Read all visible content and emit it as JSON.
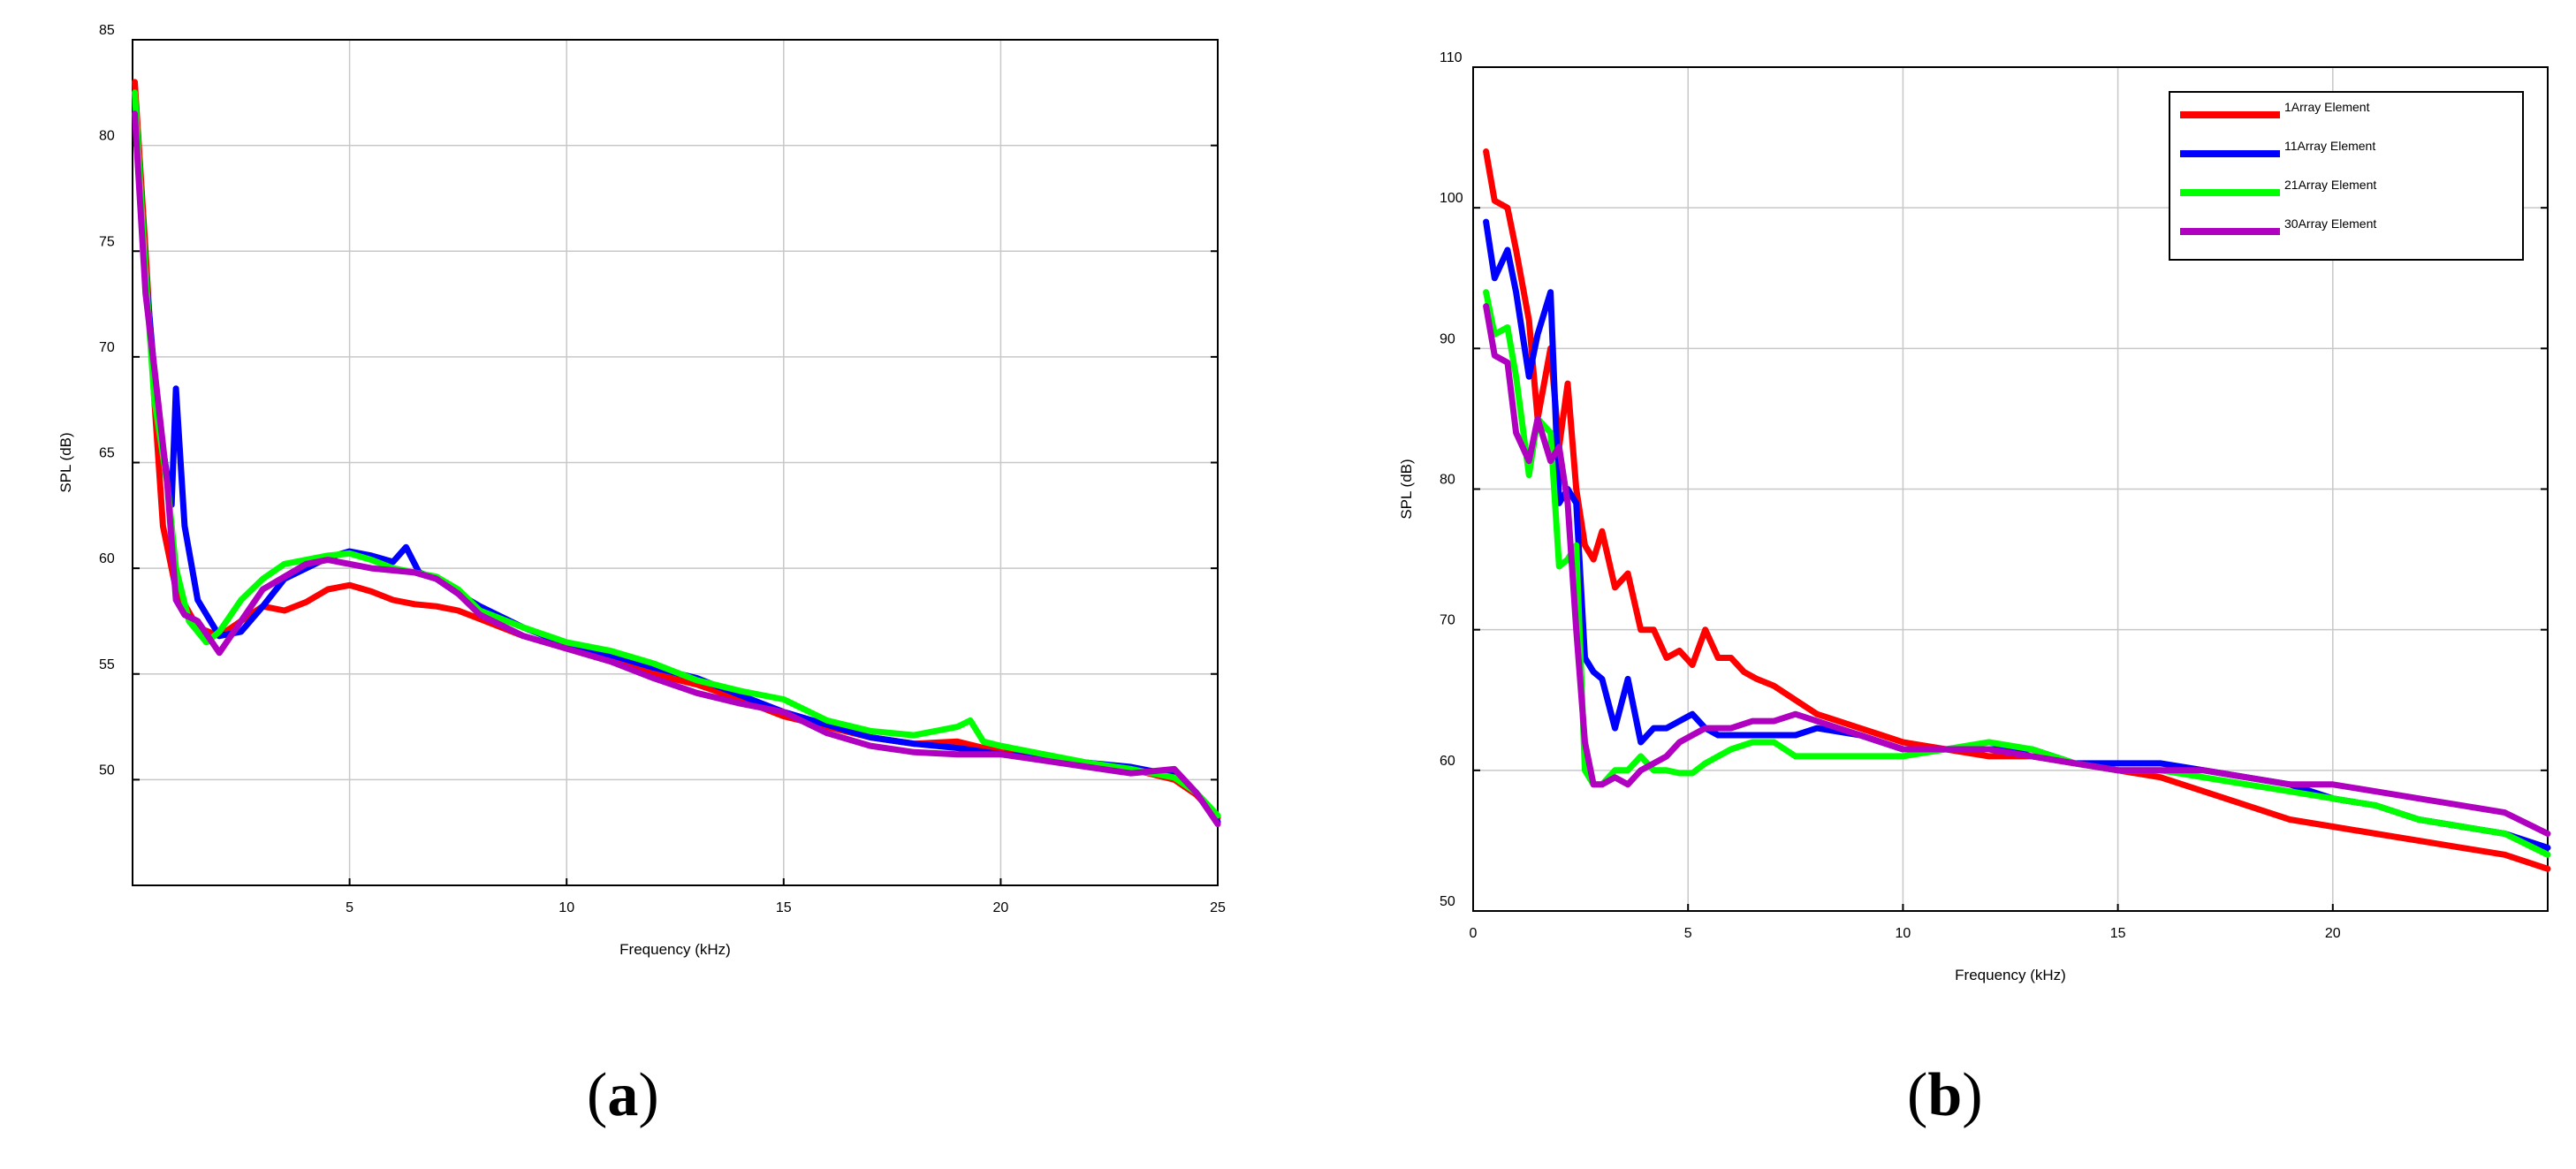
{
  "colors": {
    "red": "#ff0000",
    "blue": "#0000ff",
    "green": "#00ff00",
    "purple": "#b000c0",
    "grid": "#c8c8c8",
    "axis": "#000000"
  },
  "captions": {
    "a_open": "(",
    "a_letter": "a",
    "a_close": ")",
    "b_open": "(",
    "b_letter": "b",
    "b_close": ")"
  },
  "chart_data": [
    {
      "type": "line",
      "xlabel": "Frequency (kHz)",
      "ylabel": "SPL (dB)",
      "xlim": [
        0,
        25
      ],
      "ylim": [
        45,
        85
      ],
      "xticks": [
        5,
        10,
        15,
        20,
        25
      ],
      "yticks": [
        50,
        55,
        60,
        65,
        70,
        75,
        80,
        85
      ],
      "grid": true,
      "legend": null,
      "series": [
        {
          "color": "red",
          "x": [
            0.05,
            0.3,
            0.5,
            0.7,
            1.0,
            1.5,
            2.0,
            2.5,
            3.0,
            3.5,
            4.0,
            4.5,
            5.0,
            5.5,
            6.0,
            6.5,
            7.0,
            7.5,
            8.0,
            9.0,
            10.0,
            11.0,
            12.0,
            13.0,
            14.0,
            15.0,
            16.0,
            17.0,
            18.0,
            19.0,
            20.0,
            21.0,
            22.0,
            23.0,
            24.0,
            24.5,
            25.0
          ],
          "y": [
            83,
            75,
            68,
            62,
            59,
            57.2,
            56.8,
            57.5,
            58.2,
            58,
            58.4,
            59,
            59.2,
            58.9,
            58.5,
            58.3,
            58.2,
            58,
            57.6,
            56.8,
            56.2,
            55.6,
            55,
            54.5,
            53.8,
            53,
            52.5,
            52,
            51.7,
            51.8,
            51.3,
            51,
            50.8,
            50.5,
            50,
            49.3,
            48.2
          ]
        },
        {
          "color": "blue",
          "x": [
            0.05,
            0.3,
            0.6,
            0.9,
            1.0,
            1.2,
            1.5,
            2.0,
            2.5,
            3.0,
            3.5,
            4.0,
            4.5,
            5.0,
            5.5,
            6.0,
            6.3,
            6.6,
            7.0,
            7.5,
            8.0,
            9.0,
            10.0,
            11.0,
            12.0,
            13.0,
            14.0,
            15.0,
            16.0,
            17.0,
            18.0,
            19.0,
            20.0,
            21.0,
            22.0,
            23.0,
            24.0,
            24.5,
            25.0
          ],
          "y": [
            82,
            74,
            67,
            63,
            68.5,
            62,
            58.5,
            56.8,
            57,
            58.2,
            59.5,
            60,
            60.5,
            60.8,
            60.6,
            60.3,
            61,
            59.8,
            59.5,
            58.8,
            58.2,
            57.2,
            56.4,
            55.9,
            55.3,
            54.8,
            54,
            53.2,
            52.6,
            52,
            51.7,
            51.5,
            51.2,
            51,
            50.8,
            50.6,
            50.2,
            49.4,
            48
          ]
        },
        {
          "color": "green",
          "x": [
            0.05,
            0.3,
            0.5,
            0.8,
            1.0,
            1.3,
            1.7,
            2.0,
            2.5,
            3.0,
            3.5,
            4.0,
            4.5,
            5.0,
            5.5,
            6.0,
            6.5,
            7.0,
            7.5,
            8.0,
            9.0,
            10.0,
            11.0,
            12.0,
            13.0,
            14.0,
            15.0,
            16.0,
            17.0,
            18.0,
            19.0,
            19.3,
            19.6,
            20.0,
            21.0,
            22.0,
            23.0,
            24.0,
            24.5,
            25.0
          ],
          "y": [
            82.5,
            74,
            68,
            64,
            60,
            57.5,
            56.5,
            57,
            58.5,
            59.5,
            60.2,
            60.4,
            60.6,
            60.7,
            60.4,
            60,
            59.8,
            59.6,
            59,
            58,
            57.2,
            56.5,
            56.1,
            55.5,
            54.7,
            54.2,
            53.8,
            52.8,
            52.3,
            52.1,
            52.5,
            52.8,
            51.8,
            51.6,
            51.2,
            50.8,
            50.5,
            50.1,
            49.4,
            48.3
          ]
        },
        {
          "color": "purple",
          "x": [
            0.05,
            0.3,
            0.5,
            0.8,
            1.0,
            1.2,
            1.5,
            2.0,
            2.5,
            3.0,
            3.5,
            4.0,
            4.5,
            5.0,
            5.5,
            6.0,
            6.5,
            7.0,
            7.5,
            8.0,
            9.0,
            10.0,
            11.0,
            12.0,
            13.0,
            14.0,
            15.0,
            16.0,
            17.0,
            18.0,
            19.0,
            20.0,
            21.0,
            22.0,
            23.0,
            24.0,
            24.5,
            25.0
          ],
          "y": [
            81.5,
            73,
            69.5,
            64,
            58.5,
            57.8,
            57.5,
            56,
            57.5,
            59,
            59.6,
            60.2,
            60.4,
            60.2,
            60,
            59.9,
            59.8,
            59.5,
            58.8,
            57.8,
            56.8,
            56.2,
            55.6,
            54.8,
            54.1,
            53.6,
            53.2,
            52.2,
            51.6,
            51.3,
            51.2,
            51.2,
            50.9,
            50.6,
            50.3,
            50.5,
            49.4,
            47.9
          ]
        }
      ]
    },
    {
      "type": "line",
      "xlabel": "Frequency (kHz)",
      "ylabel": "SPL (dB)",
      "xlim": [
        0,
        25
      ],
      "ylim": [
        50,
        110
      ],
      "xticks": [
        0,
        5,
        10,
        15,
        20
      ],
      "yticks": [
        50,
        60,
        70,
        80,
        90,
        100,
        110
      ],
      "grid": true,
      "legend": "top-right",
      "series": [
        {
          "name": "1Array Element",
          "color": "red",
          "x": [
            0.3,
            0.5,
            0.8,
            1.0,
            1.3,
            1.5,
            1.8,
            2.0,
            2.2,
            2.4,
            2.6,
            2.8,
            3.0,
            3.3,
            3.6,
            3.9,
            4.2,
            4.5,
            4.8,
            5.1,
            5.4,
            5.7,
            6.0,
            6.3,
            6.6,
            7.0,
            7.5,
            8.0,
            8.5,
            9.0,
            9.5,
            10.0,
            11.0,
            12.0,
            13.0,
            14.0,
            15.0,
            16.0,
            17.0,
            18.0,
            19.0,
            20.0,
            21.0,
            22.0,
            23.0,
            24.0,
            25.0
          ],
          "y": [
            104,
            100.5,
            100,
            97,
            92,
            85,
            90,
            83,
            87.5,
            80,
            76,
            75,
            77,
            73,
            74,
            70,
            70,
            68,
            68.5,
            67.5,
            70,
            68,
            68,
            67,
            66.5,
            66,
            65,
            64,
            63.5,
            63,
            62.5,
            62,
            61.5,
            61,
            61,
            60.5,
            60,
            59.5,
            58.5,
            57.5,
            56.5,
            56,
            55.5,
            55,
            54.5,
            54,
            53
          ]
        },
        {
          "name": "11Array Element",
          "color": "blue",
          "x": [
            0.3,
            0.5,
            0.8,
            1.0,
            1.3,
            1.5,
            1.8,
            2.0,
            2.2,
            2.4,
            2.6,
            2.8,
            3.0,
            3.3,
            3.6,
            3.9,
            4.2,
            4.5,
            4.8,
            5.1,
            5.4,
            5.7,
            6.0,
            6.5,
            7.0,
            7.5,
            8.0,
            9.0,
            10.0,
            11.0,
            12.0,
            13.0,
            14.0,
            15.0,
            16.0,
            17.0,
            18.0,
            19.0,
            20.0,
            21.0,
            22.0,
            23.0,
            24.0,
            25.0
          ],
          "y": [
            99,
            95,
            97,
            94,
            88,
            91,
            94,
            79,
            80,
            79,
            68,
            67,
            66.5,
            63,
            66.5,
            62,
            63,
            63,
            63.5,
            64,
            63,
            62.5,
            62.5,
            62.5,
            62.5,
            62.5,
            63,
            62.5,
            61.5,
            61.5,
            61.5,
            61.5,
            60.5,
            60.5,
            60.5,
            60,
            59.5,
            59,
            58,
            57.5,
            56.5,
            56,
            55.5,
            54.5
          ]
        },
        {
          "name": "21Array Element",
          "color": "green",
          "x": [
            0.3,
            0.5,
            0.8,
            1.0,
            1.3,
            1.5,
            1.8,
            2.0,
            2.2,
            2.4,
            2.6,
            2.8,
            3.0,
            3.3,
            3.6,
            3.9,
            4.2,
            4.5,
            4.8,
            5.1,
            5.4,
            5.7,
            6.0,
            6.5,
            7.0,
            7.5,
            8.0,
            9.0,
            10.0,
            11.0,
            12.0,
            13.0,
            14.0,
            15.0,
            16.0,
            17.0,
            18.0,
            19.0,
            20.0,
            21.0,
            22.0,
            23.0,
            24.0,
            25.0
          ],
          "y": [
            94,
            91,
            91.5,
            88,
            81,
            85,
            84,
            74.5,
            75,
            76,
            60,
            59,
            59,
            60,
            60,
            61,
            60,
            60,
            59.8,
            59.8,
            60.5,
            61,
            61.5,
            62,
            62,
            61,
            61,
            61,
            61,
            61.5,
            62,
            61.5,
            60.5,
            60,
            60,
            59.5,
            59,
            58.5,
            58,
            57.5,
            56.5,
            56,
            55.5,
            54
          ]
        },
        {
          "name": "30Array Element",
          "color": "purple",
          "x": [
            0.3,
            0.5,
            0.8,
            1.0,
            1.3,
            1.5,
            1.8,
            2.0,
            2.2,
            2.4,
            2.6,
            2.8,
            3.0,
            3.3,
            3.6,
            3.9,
            4.2,
            4.5,
            4.8,
            5.1,
            5.4,
            5.7,
            6.0,
            6.5,
            7.0,
            7.5,
            8.0,
            8.5,
            9.0,
            10.0,
            11.0,
            12.0,
            13.0,
            14.0,
            15.0,
            16.0,
            17.0,
            18.0,
            19.0,
            20.0,
            21.0,
            22.0,
            23.0,
            24.0,
            25.0
          ],
          "y": [
            93,
            89.5,
            89,
            84,
            82,
            85,
            82,
            83,
            79,
            70,
            62,
            59,
            59,
            59.5,
            59,
            60,
            60.5,
            61,
            62,
            62.5,
            63,
            63,
            63,
            63.5,
            63.5,
            64,
            63.5,
            63,
            62.5,
            61.5,
            61.5,
            61.5,
            61,
            60.5,
            60,
            60,
            60,
            59.5,
            59,
            59,
            58.5,
            58,
            57.5,
            57,
            55.5
          ]
        }
      ]
    }
  ]
}
